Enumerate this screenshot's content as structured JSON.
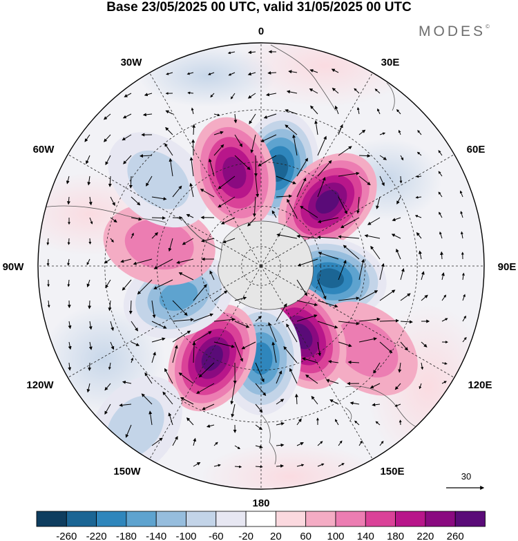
{
  "title": "Base 23/05/2025 00 UTC, valid 31/05/2025 00 UTC",
  "brand": "MODES",
  "brand_mark": "©",
  "longitude_labels": {
    "lon_0": "0",
    "lon_30e": "30E",
    "lon_60e": "60E",
    "lon_90e": "90E",
    "lon_120e": "120E",
    "lon_150e": "150E",
    "lon_180": "180",
    "lon_150w": "150W",
    "lon_120w": "120W",
    "lon_90w": "90W",
    "lon_60w": "60W",
    "lon_30w": "30W"
  },
  "reference_vector": "30",
  "projection": "polar stereographic, southern hemisphere",
  "colorbar": {
    "colors": [
      "#0e3d5f",
      "#1b6594",
      "#2f86bc",
      "#5ea3cf",
      "#96bddd",
      "#c3d4e8",
      "#e7e7f2",
      "#ffffff",
      "#fbd9df",
      "#f4acc4",
      "#ec7db2",
      "#da4298",
      "#b8168a",
      "#8a0a80",
      "#5a0b78"
    ],
    "ticks": [
      "-260",
      "-220",
      "-180",
      "-140",
      "-100",
      "-60",
      "-20",
      "20",
      "60",
      "100",
      "140",
      "180",
      "220",
      "260"
    ]
  },
  "anomaly_cells": [
    {
      "lon": 10,
      "lat": -42,
      "value": -260
    },
    {
      "lon": 46,
      "lat": -45,
      "value": 260
    },
    {
      "lon": 100,
      "lat": -55,
      "value": -260
    },
    {
      "lon": 128,
      "lat": -28,
      "value": 100
    },
    {
      "lon": 150,
      "lat": -50,
      "value": 260
    },
    {
      "lon": 180,
      "lat": -45,
      "value": -220
    },
    {
      "lon": -152,
      "lat": -40,
      "value": 260
    },
    {
      "lon": -110,
      "lat": -47,
      "value": -180
    },
    {
      "lon": -78,
      "lat": -40,
      "value": 100
    },
    {
      "lon": -50,
      "lat": -28,
      "value": -100
    },
    {
      "lon": -16,
      "lat": -43,
      "value": 220
    },
    {
      "lon": -142,
      "lat": -5,
      "value": -100
    }
  ]
}
